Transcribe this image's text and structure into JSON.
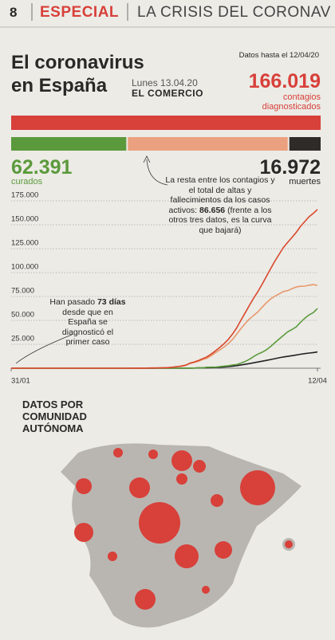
{
  "header": {
    "page_number": "8",
    "section": "ESPECIAL",
    "headline": "LA CRISIS DEL CORONAV"
  },
  "chart_data": [
    {
      "type": "stacked-bar",
      "title": "El coronavirus en España",
      "date": "Lunes 13.04.20",
      "source": "EL COMERCIO",
      "note": "Datos hasta el 12/04/20",
      "total": {
        "value": 166019,
        "value_label": "166.019",
        "label": "contagios diagnosticados",
        "color": "#d8403a"
      },
      "segments": [
        {
          "name": "curados",
          "value": 62391,
          "value_label": "62.391",
          "color": "#5b9a3c"
        },
        {
          "value": 86656,
          "value_label": "86.656",
          "color": "#eba17f"
        },
        {
          "name": "muertes",
          "value": 16972,
          "value_label": "16.972",
          "color": "#2e2b28"
        }
      ],
      "annotation": {
        "before": "La resta entre los contagios y el total de altas y fallecimientos da los casos activos:",
        "after": "(frente a los otros tres datos, es la curva que bajará)"
      }
    },
    {
      "type": "line",
      "categories": [
        "31/01",
        null,
        null,
        null,
        null,
        null,
        null,
        null,
        null,
        null,
        null,
        null,
        null,
        null,
        null,
        null,
        null,
        null,
        null,
        null,
        null,
        null,
        null,
        null,
        null,
        null,
        null,
        null,
        null,
        null,
        null,
        null,
        null,
        null,
        null,
        null,
        null,
        null,
        null,
        null,
        null,
        null,
        null,
        null,
        null,
        null,
        null,
        null,
        null,
        null,
        null,
        null,
        null,
        null,
        null,
        null,
        null,
        null,
        null,
        null,
        null,
        null,
        null,
        null,
        null,
        null,
        null,
        null,
        null,
        null,
        null,
        null,
        "12/04"
      ],
      "ylim": [
        0,
        175000
      ],
      "yticks": [
        {
          "value": 25000,
          "label": "25.000"
        },
        {
          "value": 50000,
          "label": "50.000"
        },
        {
          "value": 75000,
          "label": "75.000"
        },
        {
          "value": 100000,
          "label": "100.000"
        },
        {
          "value": 125000,
          "label": "125.000"
        },
        {
          "value": 150000,
          "label": "150.000"
        },
        {
          "value": 175000,
          "label": "175.000"
        }
      ],
      "grid": true,
      "series": [
        {
          "color": "#d9472b",
          "values": [
            1,
            1,
            1,
            1,
            1,
            1,
            1,
            1,
            1,
            2,
            2,
            2,
            2,
            2,
            2,
            2,
            2,
            2,
            2,
            2,
            2,
            2,
            2,
            2,
            3,
            4,
            13,
            15,
            32,
            45,
            84,
            120,
            165,
            222,
            259,
            400,
            500,
            673,
            1073,
            1695,
            2277,
            3146,
            5232,
            6391,
            7988,
            9942,
            11826,
            14769,
            18077,
            21571,
            25496,
            29909,
            35480,
            42058,
            50105,
            57786,
            65719,
            73235,
            80110,
            87956,
            95923,
            104118,
            112065,
            119199,
            126168,
            131646,
            136675,
            141942,
            148220,
            153222,
            158273,
            161852,
            166019
          ]
        },
        {
          "color": "#e8976c",
          "values": [
            1,
            1,
            1,
            1,
            1,
            1,
            1,
            1,
            1,
            2,
            2,
            2,
            2,
            2,
            2,
            2,
            2,
            2,
            2,
            2,
            2,
            2,
            2,
            2,
            3,
            4,
            13,
            15,
            32,
            45,
            84,
            120,
            165,
            221,
            257,
            397,
            495,
            654,
            1015,
            1628,
            2040,
            2879,
            4923,
            6062,
            7183,
            9116,
            10307,
            13090,
            16203,
            18981,
            22045,
            25614,
            29943,
            35568,
            41304,
            46682,
            51504,
            55260,
            58873,
            63836,
            68475,
            72418,
            75319,
            77751,
            80205,
            81148,
            83183,
            84936,
            85644,
            85819,
            86762,
            87418,
            86656
          ]
        },
        {
          "color": "#5b9b3d",
          "values": [
            0,
            0,
            0,
            0,
            0,
            0,
            0,
            0,
            0,
            0,
            0,
            0,
            0,
            0,
            0,
            0,
            0,
            0,
            0,
            0,
            0,
            0,
            0,
            0,
            0,
            0,
            0,
            0,
            0,
            0,
            0,
            0,
            0,
            0,
            0,
            0,
            0,
            2,
            30,
            32,
            183,
            183,
            189,
            193,
            517,
            517,
            1028,
            1081,
            1107,
            1588,
            2125,
            2575,
            3355,
            3794,
            5367,
            7015,
            9357,
            12285,
            14709,
            16780,
            19259,
            22647,
            26743,
            30513,
            34219,
            38080,
            40437,
            43208,
            48021,
            52165,
            55668,
            58081,
            62391
          ]
        },
        {
          "color": "#222222",
          "values": [
            0,
            0,
            0,
            0,
            0,
            0,
            0,
            0,
            0,
            0,
            0,
            0,
            0,
            0,
            0,
            0,
            0,
            0,
            0,
            0,
            0,
            0,
            0,
            0,
            0,
            0,
            0,
            0,
            0,
            0,
            0,
            0,
            0,
            1,
            2,
            3,
            5,
            17,
            28,
            35,
            54,
            84,
            120,
            136,
            288,
            309,
            491,
            598,
            767,
            1002,
            1326,
            1720,
            2182,
            2696,
            3434,
            4089,
            4858,
            5690,
            6528,
            7340,
            8189,
            9053,
            10003,
            10935,
            11744,
            12418,
            13055,
            13798,
            14555,
            15238,
            15843,
            16353,
            16972
          ]
        }
      ],
      "annotation": {
        "before": "Han pasado",
        "bold": "73 días",
        "after": "desde que en España se diagnosticó el primer caso"
      }
    }
  ],
  "map": {
    "title": "DATOS POR COMUNIDAD AUTÓNOMA"
  }
}
